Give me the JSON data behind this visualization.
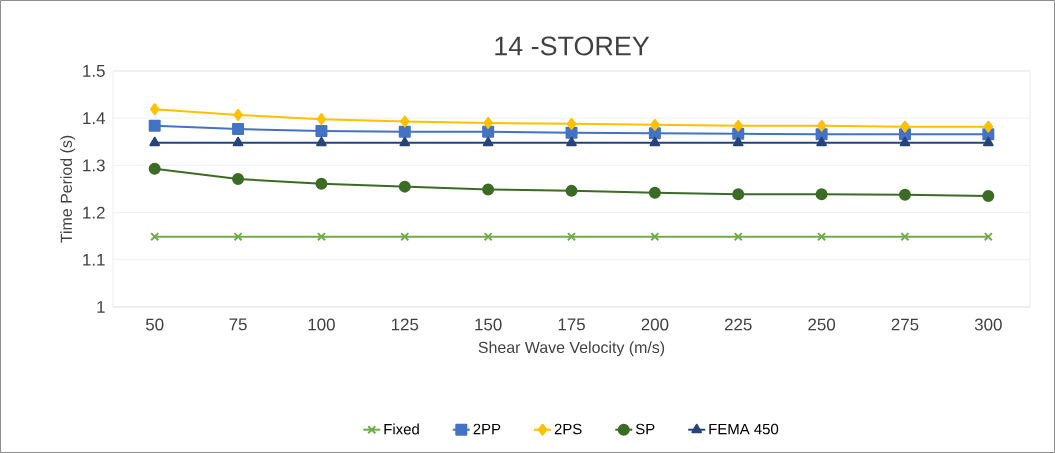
{
  "chart_data": {
    "type": "line",
    "title": "14 -STOREY",
    "xlabel": "Shear Wave Velocity (m/s)",
    "ylabel": "Time Period (s)",
    "categories": [
      "50",
      "75",
      "100",
      "125",
      "150",
      "175",
      "200",
      "225",
      "250",
      "275",
      "300"
    ],
    "series": [
      {
        "name": "Fixed",
        "color": "#70ad47",
        "marker": "cross",
        "values": [
          1.149,
          1.149,
          1.149,
          1.149,
          1.149,
          1.149,
          1.149,
          1.149,
          1.149,
          1.149,
          1.149
        ]
      },
      {
        "name": "2PP",
        "color": "#4472c4",
        "marker": "square",
        "values": [
          1.384,
          1.377,
          1.373,
          1.371,
          1.371,
          1.369,
          1.368,
          1.367,
          1.366,
          1.366,
          1.366
        ]
      },
      {
        "name": "2PS",
        "color": "#ffc000",
        "marker": "diamond",
        "values": [
          1.419,
          1.407,
          1.398,
          1.393,
          1.39,
          1.388,
          1.386,
          1.384,
          1.384,
          1.382,
          1.382
        ]
      },
      {
        "name": "SP",
        "color": "#3b6b24",
        "marker": "circle",
        "values": [
          1.293,
          1.271,
          1.261,
          1.255,
          1.249,
          1.246,
          1.242,
          1.239,
          1.239,
          1.238,
          1.235
        ]
      },
      {
        "name": "FEMA 450",
        "color": "#264478",
        "marker": "triangle",
        "values": [
          1.348,
          1.348,
          1.348,
          1.348,
          1.348,
          1.348,
          1.348,
          1.348,
          1.348,
          1.348,
          1.348
        ]
      }
    ],
    "ylim": [
      1,
      1.5
    ],
    "yticks": [
      1,
      1.1,
      1.2,
      1.3,
      1.4,
      1.5
    ],
    "grid": "y",
    "legend": "bottom",
    "line_style": "solid"
  }
}
